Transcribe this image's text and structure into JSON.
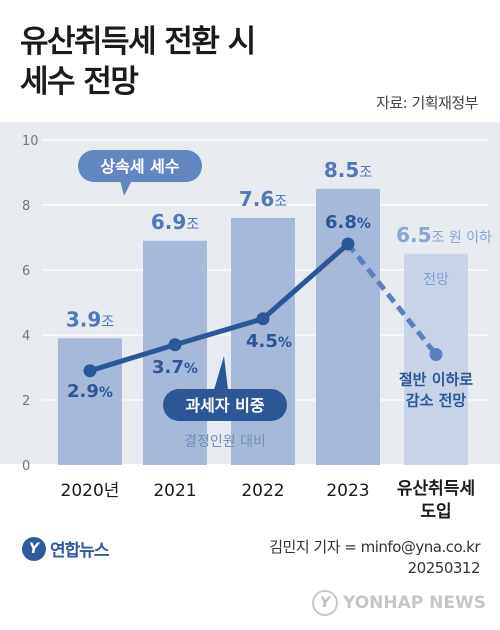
{
  "title_lines": [
    "유산취득세 전환 시",
    "세수 전망"
  ],
  "source": "자료: 기획재정부",
  "chart_data": {
    "type": "bar",
    "categories": [
      "2020년",
      "2021",
      "2022",
      "2023",
      "유산취득세 도입"
    ],
    "category_last_lines": [
      "유산취득세",
      "도입"
    ],
    "ylim": [
      0,
      10
    ],
    "yticks": [
      "0",
      "2",
      "4",
      "6",
      "8",
      "10"
    ],
    "grid": true,
    "series": [
      {
        "name": "상속세 세수",
        "values": [
          3.9,
          6.9,
          7.6,
          8.5,
          6.5
        ],
        "labels": [
          "3.9조",
          "6.9조",
          "7.6조",
          "8.5조",
          "6.5조 원 이하"
        ],
        "colors": [
          "#a7b9d8",
          "#a7b9d8",
          "#a7b9d8",
          "#a7b9d8",
          "#c8d3e7"
        ],
        "projected_index": 4,
        "projected_note": "전망"
      },
      {
        "name": "과세자 비중",
        "subtitle": "결정인원 대비",
        "values": [
          2.9,
          3.7,
          4.5,
          6.8,
          3.4
        ],
        "labels": [
          "2.9%",
          "3.7%",
          "4.5%",
          "6.8%",
          ""
        ],
        "color": "#2b5796",
        "projected_index": 4,
        "projected_note_lines": [
          "절반 이하로",
          "감소 전망"
        ]
      }
    ]
  },
  "footer": {
    "logo_mark": "Y",
    "logo_text": "연합뉴스",
    "credit_lines": [
      "김민지 기자 = minfo@yna.co.kr",
      "20250312"
    ],
    "watermark_mark": "Y",
    "watermark_text": "YONHAP NEWS"
  }
}
